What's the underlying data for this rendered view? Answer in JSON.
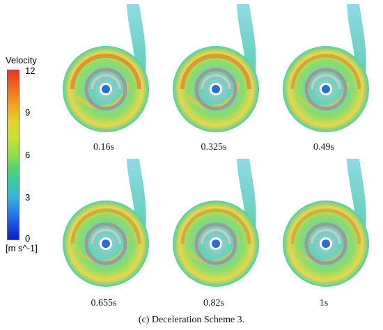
{
  "legend": {
    "title": "Velocity",
    "ticks": [
      "12",
      "9",
      "6",
      "3",
      "0"
    ],
    "units": "[m s^-1]"
  },
  "panels": [
    {
      "label": "0.16s"
    },
    {
      "label": "0.325s"
    },
    {
      "label": "0.49s"
    },
    {
      "label": "0.655s"
    },
    {
      "label": "0.82s"
    },
    {
      "label": "1s"
    }
  ],
  "caption": "(c) Deceleration Scheme 3."
}
